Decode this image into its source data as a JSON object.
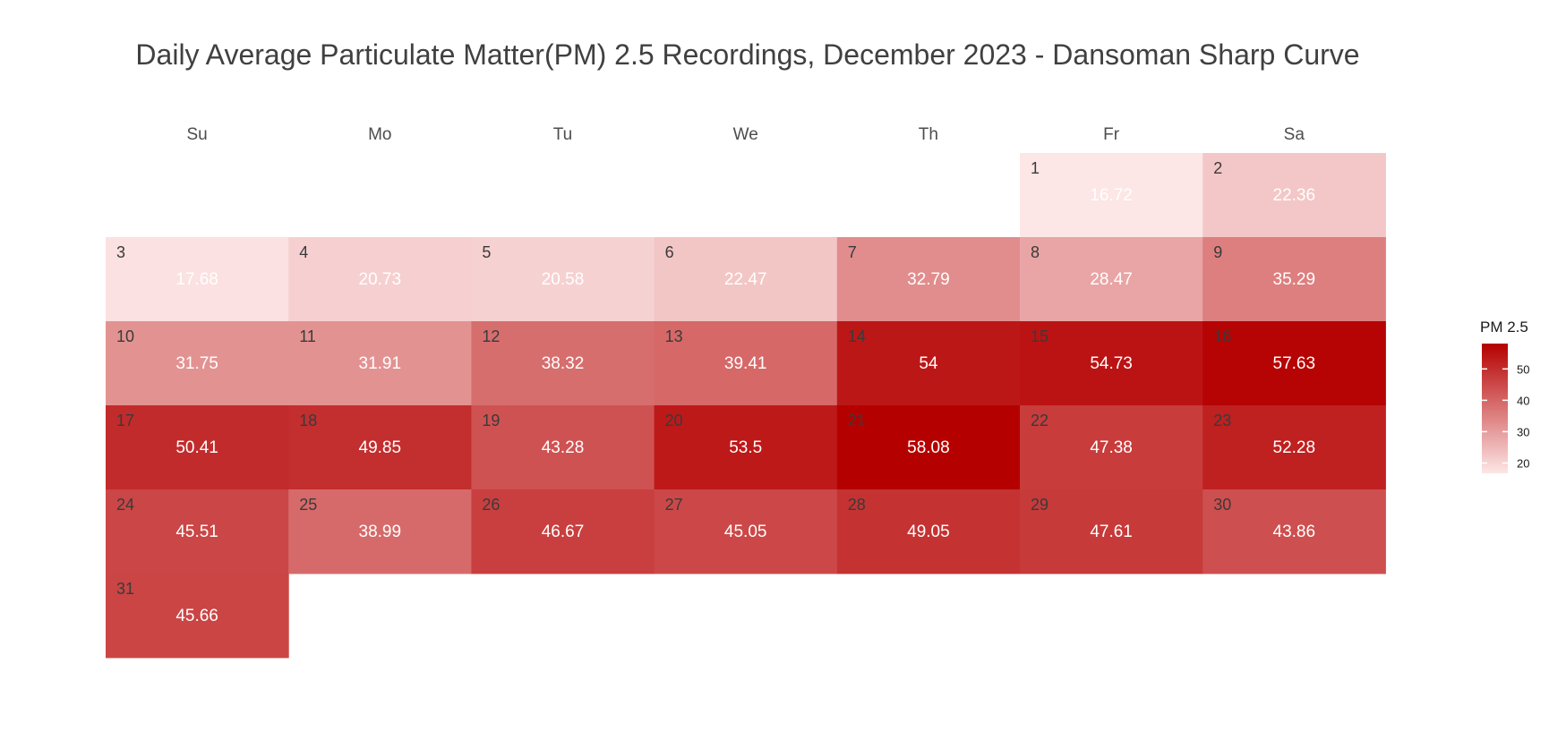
{
  "chart_data": {
    "type": "heatmap",
    "title": "Daily Average Particulate Matter(PM) 2.5 Recordings, December 2023 - Dansoman Sharp Curve",
    "weekdays": [
      "Su",
      "Mo",
      "Tu",
      "We",
      "Th",
      "Fr",
      "Sa"
    ],
    "month": "December 2023",
    "first_weekday_index": 5,
    "days": [
      {
        "day": "1",
        "label": "16.72",
        "value": 16.72
      },
      {
        "day": "2",
        "label": "22.36",
        "value": 22.36
      },
      {
        "day": "3",
        "label": "17.68",
        "value": 17.68
      },
      {
        "day": "4",
        "label": "20.73",
        "value": 20.73
      },
      {
        "day": "5",
        "label": "20.58",
        "value": 20.58
      },
      {
        "day": "6",
        "label": "22.47",
        "value": 22.47
      },
      {
        "day": "7",
        "label": "32.79",
        "value": 32.79
      },
      {
        "day": "8",
        "label": "28.47",
        "value": 28.47
      },
      {
        "day": "9",
        "label": "35.29",
        "value": 35.29
      },
      {
        "day": "10",
        "label": "31.75",
        "value": 31.75
      },
      {
        "day": "11",
        "label": "31.91",
        "value": 31.91
      },
      {
        "day": "12",
        "label": "38.32",
        "value": 38.32
      },
      {
        "day": "13",
        "label": "39.41",
        "value": 39.41
      },
      {
        "day": "14",
        "label": "54",
        "value": 54
      },
      {
        "day": "15",
        "label": "54.73",
        "value": 54.73
      },
      {
        "day": "16",
        "label": "57.63",
        "value": 57.63
      },
      {
        "day": "17",
        "label": "50.41",
        "value": 50.41
      },
      {
        "day": "18",
        "label": "49.85",
        "value": 49.85
      },
      {
        "day": "19",
        "label": "43.28",
        "value": 43.28
      },
      {
        "day": "20",
        "label": "53.5",
        "value": 53.5
      },
      {
        "day": "21",
        "label": "58.08",
        "value": 58.08
      },
      {
        "day": "22",
        "label": "47.38",
        "value": 47.38
      },
      {
        "day": "23",
        "label": "52.28",
        "value": 52.28
      },
      {
        "day": "24",
        "label": "45.51",
        "value": 45.51
      },
      {
        "day": "25",
        "label": "38.99",
        "value": 38.99
      },
      {
        "day": "26",
        "label": "46.67",
        "value": 46.67
      },
      {
        "day": "27",
        "label": "45.05",
        "value": 45.05
      },
      {
        "day": "28",
        "label": "49.05",
        "value": 49.05
      },
      {
        "day": "29",
        "label": "47.61",
        "value": 47.61
      },
      {
        "day": "30",
        "label": "43.86",
        "value": 43.86
      },
      {
        "day": "31",
        "label": "45.66",
        "value": 45.66
      }
    ],
    "color_scale": {
      "low_color": "#fde6e6",
      "high_color": "#b50000",
      "domain": [
        16.72,
        58.08
      ]
    },
    "legend": {
      "title": "PM 2.5",
      "ticks": [
        "20",
        "30",
        "40",
        "50"
      ],
      "tick_values": [
        20,
        30,
        40,
        50
      ],
      "placement": "right"
    }
  }
}
